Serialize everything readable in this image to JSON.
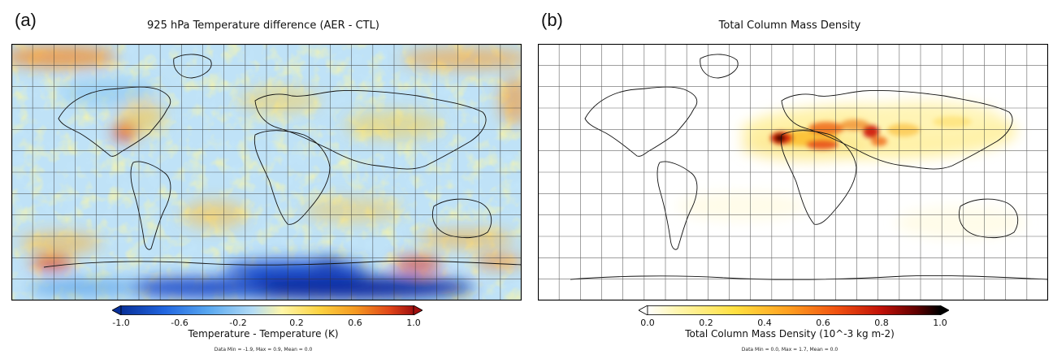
{
  "panels": [
    {
      "letter": "(a)",
      "title": "925 hPa Temperature difference (AER - CTL)",
      "colorbar_label": "Temperature - Temperature (K)",
      "stats": "Data Min = -1.9, Max = 0.9, Mean = 0.0",
      "ticks": [
        "-1.0",
        "-0.6",
        "-0.2",
        "0.2",
        "0.6",
        "1.0"
      ]
    },
    {
      "letter": "(b)",
      "title": "Total Column Mass Density",
      "colorbar_label": "Total Column Mass Density (10^-3 kg m-2)",
      "stats": "Data Min = 0.0, Max = 1.7, Mean = 0.0",
      "ticks": [
        "0.0",
        "0.2",
        "0.4",
        "0.6",
        "0.8",
        "1.0"
      ]
    }
  ],
  "chart_data": [
    {
      "type": "heatmap",
      "title": "925 hPa Temperature difference (AER - CTL)",
      "colorbar_label": "Temperature - Temperature (K)",
      "colorbar_range": [
        -1.0,
        1.0
      ],
      "colorbar_ticks": [
        -1.0,
        -0.6,
        -0.2,
        0.2,
        0.6,
        1.0
      ],
      "colorbar_extend": "both",
      "colormap": [
        "#08309a",
        "#2166e0",
        "#59a8f0",
        "#b4dcf5",
        "#fff6a8",
        "#fcd240",
        "#f59a22",
        "#e04418",
        "#a01010"
      ],
      "data_min": -1.9,
      "data_max": 0.9,
      "data_mean": 0.0,
      "grid": true,
      "features": [
        {
          "region": "Antarctic coast / Southern Ocean",
          "value": -1.0
        },
        {
          "region": "Western US",
          "value": 0.8
        },
        {
          "region": "Arctic",
          "value": 0.6
        },
        {
          "region": "Southern Ocean (near 45S, 120E)",
          "value": 0.6
        },
        {
          "region": "Southern Ocean (near 45S, 60W)",
          "value": 0.6
        }
      ]
    },
    {
      "type": "heatmap",
      "title": "Total Column Mass Density",
      "colorbar_label": "Total Column Mass Density (10^-3 kg m-2)",
      "colorbar_range": [
        0.0,
        1.0
      ],
      "colorbar_ticks": [
        0.0,
        0.2,
        0.4,
        0.6,
        0.8,
        1.0
      ],
      "colorbar_extend": "both",
      "colormap": [
        "#ffffff",
        "#fff6b0",
        "#ffe040",
        "#ffa020",
        "#f05010",
        "#c01008",
        "#600000",
        "#000000"
      ],
      "data_min": 0.0,
      "data_max": 1.7,
      "data_mean": 0.0,
      "grid": true,
      "features": [
        {
          "region": "Western Sahara",
          "value": 1.0
        },
        {
          "region": "Libya / Egypt",
          "value": 0.6
        },
        {
          "region": "Arabian Peninsula",
          "value": 0.7
        },
        {
          "region": "Central Asia / Taklamakan",
          "value": 0.2
        }
      ]
    }
  ]
}
